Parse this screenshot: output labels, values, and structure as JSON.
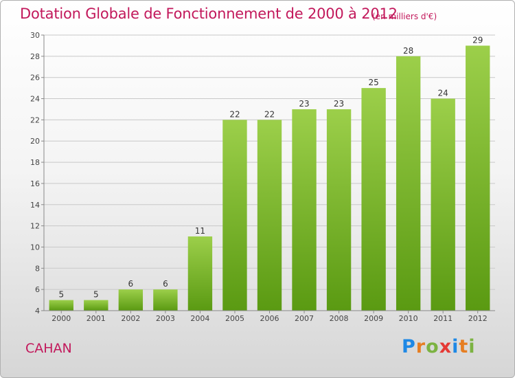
{
  "title": "Dotation Globale de Fonctionnement de 2000 à 2012",
  "unit": "(en milliers d'€)",
  "commune": "CAHAN",
  "logo": {
    "letters": [
      "P",
      "r",
      "o",
      "x",
      "i",
      "t",
      "i"
    ],
    "colors": [
      "#1e88e5",
      "#e67e22",
      "#7cb342",
      "#e53935",
      "#1e88e5",
      "#e67e22",
      "#7cb342"
    ]
  },
  "colors": {
    "title": "#c2185b",
    "bar_top": "#9ccf4a",
    "bar_bottom": "#5a9a12",
    "grid": "#c8c8c8"
  },
  "chart_data": {
    "type": "bar",
    "title": "Dotation Globale de Fonctionnement de 2000 à 2012",
    "categories": [
      "2000",
      "2001",
      "2002",
      "2003",
      "2004",
      "2005",
      "2006",
      "2007",
      "2008",
      "2009",
      "2010",
      "2011",
      "2012"
    ],
    "values": [
      5,
      5,
      6,
      6,
      11,
      22,
      22,
      23,
      23,
      25,
      28,
      24,
      29
    ],
    "ylim": [
      4,
      30
    ],
    "yticks": [
      4,
      6,
      8,
      10,
      12,
      14,
      16,
      18,
      20,
      22,
      24,
      26,
      28,
      30
    ],
    "xlabel": "",
    "ylabel": "",
    "grid": true,
    "data_labels": true
  }
}
